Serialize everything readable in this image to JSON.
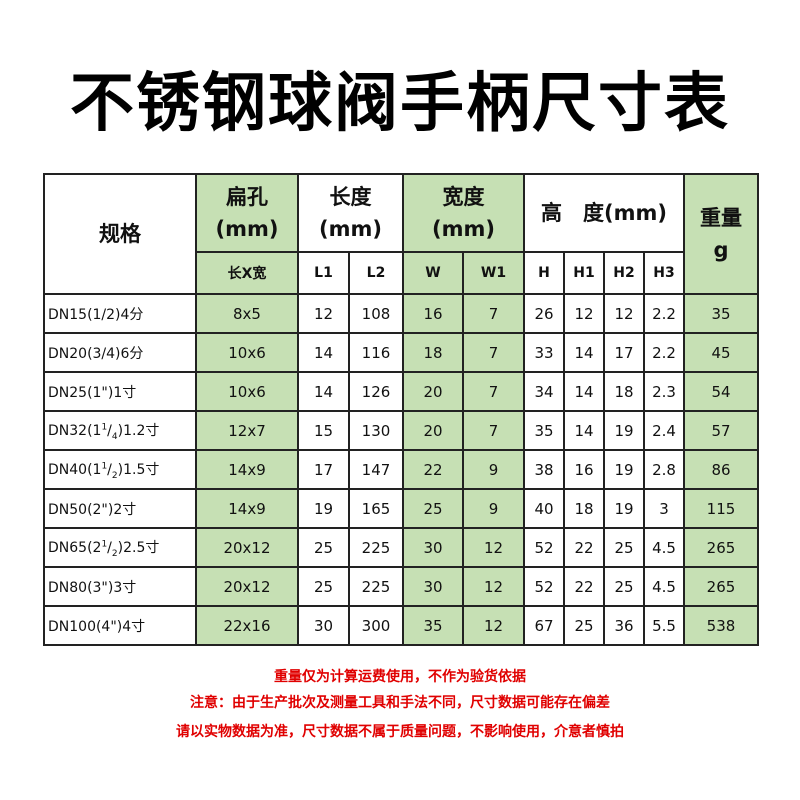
{
  "title": "不锈钢球阀手柄尺寸表",
  "header": {
    "spec": "规格",
    "flat_hole": "扁孔",
    "flat_hole_unit": "(mm)",
    "length": "长度",
    "length_unit": "(mm)",
    "width": "宽度",
    "width_unit": "(mm)",
    "height": "高　度(mm)",
    "weight": "重量",
    "weight_unit": "g",
    "sub": [
      "长X宽",
      "L1",
      "L2",
      "W",
      "W1",
      "H",
      "H1",
      "H2",
      "H3"
    ]
  },
  "rows": [
    {
      "spec": "DN15(1/2)4分",
      "num": "",
      "den": "",
      "tail": "",
      "hole": "8x5",
      "L1": "12",
      "L2": "108",
      "W": "16",
      "W1": "7",
      "H": "26",
      "H1": "12",
      "H2": "12",
      "H3": "2.2",
      "g": "35"
    },
    {
      "spec": "DN20(3/4)6分",
      "num": "",
      "den": "",
      "tail": "",
      "hole": "10x6",
      "L1": "14",
      "L2": "116",
      "W": "18",
      "W1": "7",
      "H": "33",
      "H1": "14",
      "H2": "17",
      "H3": "2.2",
      "g": "45"
    },
    {
      "spec": "DN25(1\")1寸",
      "num": "",
      "den": "",
      "tail": "",
      "hole": "10x6",
      "L1": "14",
      "L2": "126",
      "W": "20",
      "W1": "7",
      "H": "34",
      "H1": "14",
      "H2": "18",
      "H3": "2.3",
      "g": "54"
    },
    {
      "spec": "DN32(1",
      "num": "1",
      "den": "4",
      "tail": ")1.2寸",
      "hole": "12x7",
      "L1": "15",
      "L2": "130",
      "W": "20",
      "W1": "7",
      "H": "35",
      "H1": "14",
      "H2": "19",
      "H3": "2.4",
      "g": "57"
    },
    {
      "spec": "DN40(1",
      "num": "1",
      "den": "2",
      "tail": ")1.5寸",
      "hole": "14x9",
      "L1": "17",
      "L2": "147",
      "W": "22",
      "W1": "9",
      "H": "38",
      "H1": "16",
      "H2": "19",
      "H3": "2.8",
      "g": "86"
    },
    {
      "spec": "DN50(2\")2寸",
      "num": "",
      "den": "",
      "tail": "",
      "hole": "14x9",
      "L1": "19",
      "L2": "165",
      "W": "25",
      "W1": "9",
      "H": "40",
      "H1": "18",
      "H2": "19",
      "H3": "3",
      "g": "115"
    },
    {
      "spec": "DN65(2",
      "num": "1",
      "den": "2",
      "tail": ")2.5寸",
      "hole": "20x12",
      "L1": "25",
      "L2": "225",
      "W": "30",
      "W1": "12",
      "H": "52",
      "H1": "22",
      "H2": "25",
      "H3": "4.5",
      "g": "265"
    },
    {
      "spec": "DN80(3\")3寸",
      "num": "",
      "den": "",
      "tail": "",
      "hole": "20x12",
      "L1": "25",
      "L2": "225",
      "W": "30",
      "W1": "12",
      "H": "52",
      "H1": "22",
      "H2": "25",
      "H3": "4.5",
      "g": "265"
    },
    {
      "spec": "DN100(4\")4寸",
      "num": "",
      "den": "",
      "tail": "",
      "hole": "22x16",
      "L1": "30",
      "L2": "300",
      "W": "35",
      "W1": "12",
      "H": "67",
      "H1": "25",
      "H2": "36",
      "H3": "5.5",
      "g": "538"
    }
  ],
  "notes": [
    "重量仅为计算运费使用，不作为验货依据",
    "注意：由于生产批次及测量工具和手法不同，尺寸数据可能存在偏差",
    "请以实物数据为准，尺寸数据不属于质量问题，不影响使用，介意者慎拍"
  ]
}
